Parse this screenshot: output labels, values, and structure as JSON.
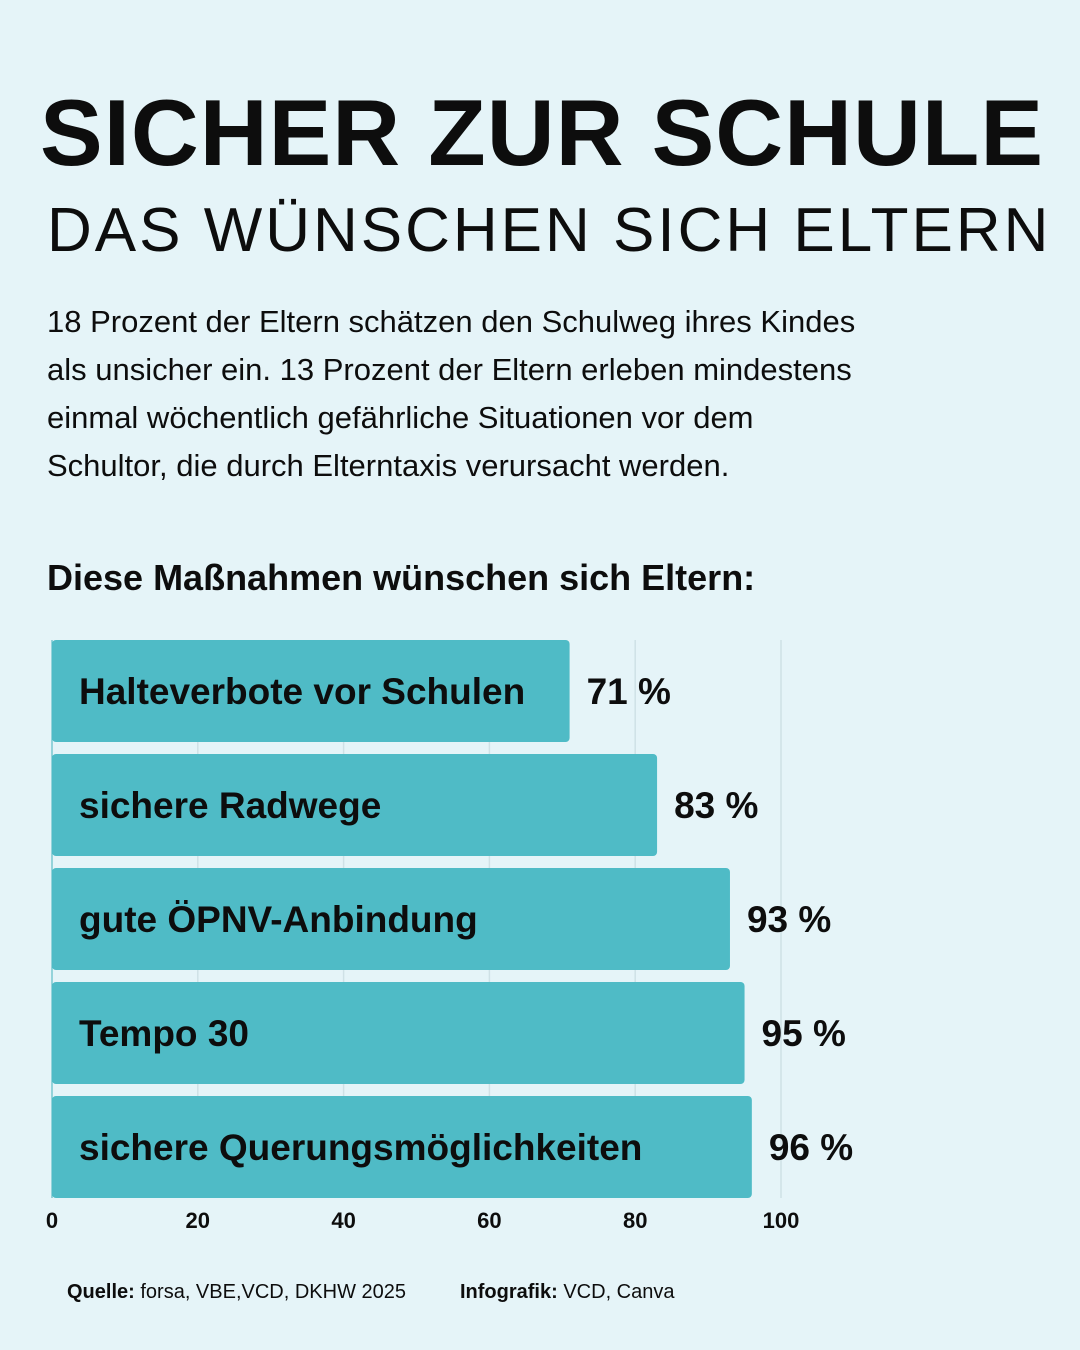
{
  "header": {
    "title": "SICHER ZUR SCHULE",
    "subtitle": "DAS WÜNSCHEN SICH ELTERN"
  },
  "intro": {
    "lines": [
      "18 Prozent der Eltern schätzen den Schulweg ihres Kindes",
      "als unsicher ein. 13 Prozent der Eltern erleben mindestens",
      "einmal wöchentlich gefährliche Situationen vor dem",
      "Schultor, die durch Elterntaxis verursacht werden."
    ]
  },
  "section_heading": "Diese Maßnahmen wünschen sich Eltern:",
  "colors": {
    "background": "#e5f4f8",
    "bar": "#4fbbc6",
    "grid": "#cfe1e6",
    "text": "#0d0d0d"
  },
  "chart_data": {
    "type": "bar",
    "orientation": "horizontal",
    "categories": [
      "Halteverbote vor Schulen",
      "sichere Radwege",
      "gute ÖPNV-Anbindung",
      "Tempo 30",
      "sichere Querungsmöglichkeiten"
    ],
    "values": [
      71,
      83,
      93,
      95,
      96
    ],
    "value_labels": [
      "71 %",
      "83 %",
      "93 %",
      "95 %",
      "96 %"
    ],
    "xlim": [
      0,
      100
    ],
    "xticks": [
      "0",
      "20",
      "40",
      "60",
      "80",
      "100"
    ],
    "grid": "vertical"
  },
  "footer": {
    "source_label": "Quelle:",
    "source_text": "forsa, VBE,VCD, DKHW 2025",
    "credit_label": "Infografik:",
    "credit_text": "VCD, Canva"
  }
}
